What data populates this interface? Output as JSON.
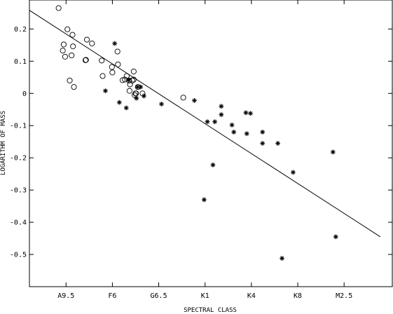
{
  "chart_data": {
    "type": "scatter",
    "title": "",
    "xlabel": "SPECTRAL CLASS",
    "ylabel": "LOGARITHM OF MASS",
    "x_axis": {
      "type": "categorical-ordinal",
      "tick_labels": [
        "A9.5",
        "F6",
        "G6.5",
        "K1",
        "K4",
        "K8",
        "M2.5"
      ],
      "tick_positions": [
        1,
        2,
        3,
        4,
        5,
        6,
        7
      ],
      "range": [
        0.21,
        8.04
      ]
    },
    "y_axis": {
      "tick_labels": [
        "-0.5",
        "-0.4",
        "-0.3",
        "-0.2",
        "-0.1",
        "0",
        "0.1",
        "0.2"
      ],
      "tick_values": [
        -0.5,
        -0.4,
        -0.3,
        -0.2,
        -0.1,
        0,
        0.1,
        0.2
      ],
      "ylim": [
        -0.6,
        0.29
      ]
    },
    "grid": false,
    "legend": "none",
    "series": [
      {
        "marker": "open-circle",
        "points": [
          [
            0.84,
            0.265
          ],
          [
            0.93,
            0.133
          ],
          [
            0.95,
            0.152
          ],
          [
            0.98,
            0.114
          ],
          [
            1.03,
            0.199
          ],
          [
            1.08,
            0.04
          ],
          [
            1.12,
            0.118
          ],
          [
            1.14,
            0.182
          ],
          [
            1.15,
            0.146
          ],
          [
            1.17,
            0.02
          ],
          [
            1.42,
            0.103
          ],
          [
            1.43,
            0.104
          ],
          [
            1.45,
            0.167
          ],
          [
            1.56,
            0.155
          ],
          [
            1.77,
            0.102
          ],
          [
            1.79,
            0.054
          ],
          [
            1.99,
            0.082
          ],
          [
            2.0,
            0.065
          ],
          [
            2.11,
            0.13
          ],
          [
            2.12,
            0.09
          ],
          [
            2.22,
            0.041
          ],
          [
            2.27,
            0.043
          ],
          [
            2.31,
            0.054
          ],
          [
            2.36,
            0.04
          ],
          [
            2.37,
            0.008
          ],
          [
            2.38,
            0.028
          ],
          [
            2.43,
            0.04
          ],
          [
            2.46,
            0.068
          ],
          [
            2.48,
            -0.005
          ],
          [
            2.51,
            0.0
          ],
          [
            2.46,
            0.043
          ],
          [
            2.5,
            0.0
          ],
          [
            2.55,
            0.02
          ],
          [
            2.65,
            0.0
          ],
          [
            3.53,
            -0.013
          ]
        ]
      },
      {
        "marker": "asterisk",
        "points": [
          [
            1.85,
            0.008
          ],
          [
            2.05,
            0.155
          ],
          [
            2.15,
            -0.028
          ],
          [
            2.3,
            -0.045
          ],
          [
            2.35,
            0.042
          ],
          [
            2.52,
            -0.015
          ],
          [
            2.54,
            0.02
          ],
          [
            2.61,
            0.02
          ],
          [
            2.68,
            -0.008
          ],
          [
            3.06,
            -0.033
          ],
          [
            3.77,
            -0.022
          ],
          [
            4.05,
            -0.088
          ],
          [
            4.21,
            -0.088
          ],
          [
            4.35,
            -0.04
          ],
          [
            4.35,
            -0.066
          ],
          [
            4.58,
            -0.098
          ],
          [
            4.62,
            -0.12
          ],
          [
            4.88,
            -0.06
          ],
          [
            4.9,
            -0.125
          ],
          [
            4.98,
            -0.062
          ],
          [
            5.24,
            -0.12
          ],
          [
            5.24,
            -0.155
          ],
          [
            5.57,
            -0.155
          ],
          [
            5.9,
            -0.245
          ],
          [
            6.76,
            -0.182
          ],
          [
            4.17,
            -0.222
          ],
          [
            3.98,
            -0.33
          ],
          [
            5.66,
            -0.512
          ],
          [
            6.82,
            -0.445
          ]
        ]
      }
    ],
    "fit_line": {
      "x": [
        0.21,
        7.78
      ],
      "y": [
        0.258,
        -0.445
      ]
    }
  }
}
